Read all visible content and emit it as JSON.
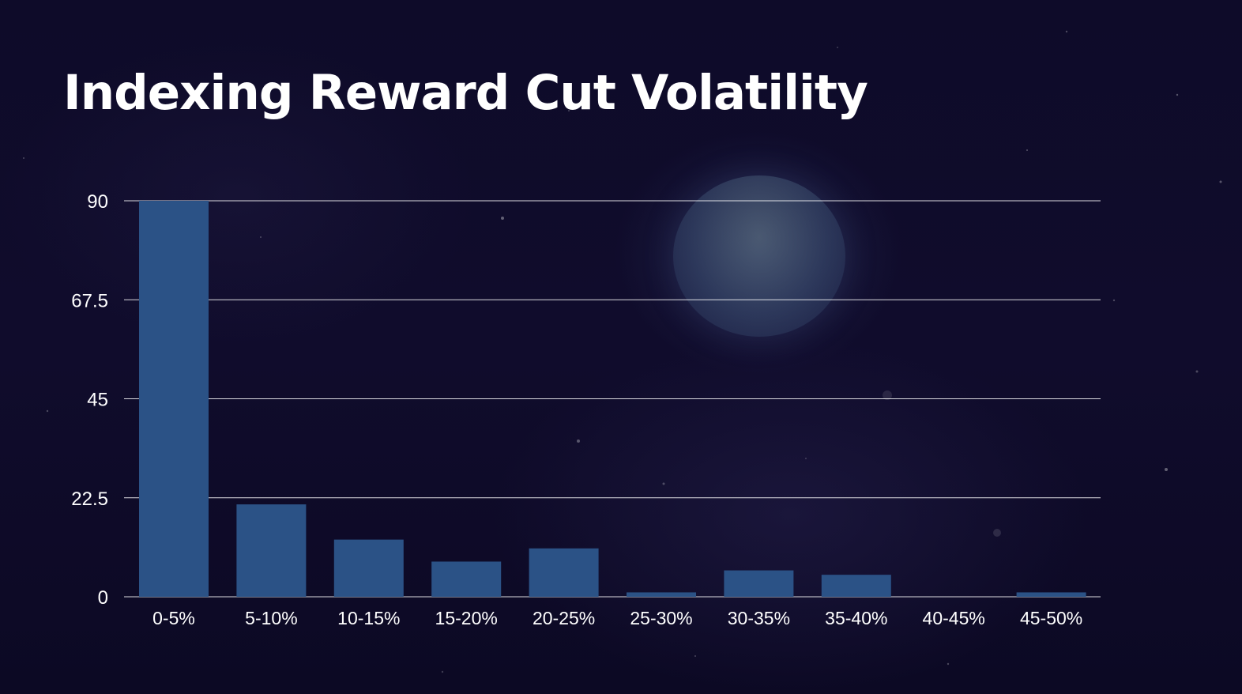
{
  "slide": {
    "title": "Indexing Reward Cut Volatility"
  },
  "colors": {
    "background": "#0d0a26",
    "bar": "#2b5286",
    "gridline": "#ffffff",
    "text": "#ffffff"
  },
  "chart_data": {
    "type": "bar",
    "title": "Indexing Reward Cut Volatility",
    "xlabel": "",
    "ylabel": "",
    "categories": [
      "0-5%",
      "5-10%",
      "10-15%",
      "15-20%",
      "20-25%",
      "25-30%",
      "30-35%",
      "35-40%",
      "40-45%",
      "45-50%"
    ],
    "values": [
      90,
      21,
      13,
      8,
      11,
      1,
      6,
      5,
      0,
      1
    ],
    "ylim": [
      0,
      90
    ],
    "yticks": [
      "0",
      "22.5",
      "45",
      "67.5",
      "90"
    ],
    "grid": true,
    "legend": "none"
  }
}
